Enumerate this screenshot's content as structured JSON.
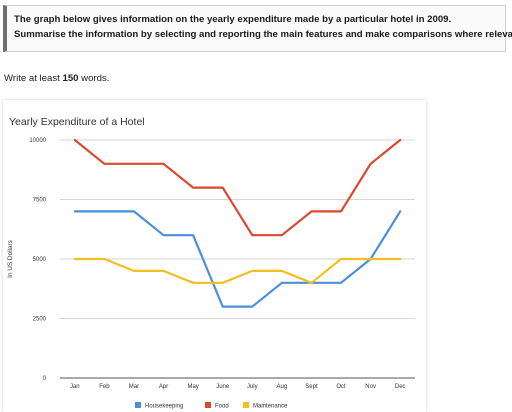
{
  "prompt": {
    "line1": "The graph below gives information on the yearly expenditure made by a particular hotel in 2009.",
    "line2": "Summarise the information by selecting and reporting the main features and make comparisons where relevant."
  },
  "instruction": {
    "prefix": "Write at least ",
    "count": "150",
    "suffix": " words."
  },
  "chart_data": {
    "type": "line",
    "title": "Yearly Expenditure of a Hotel",
    "xlabel": "",
    "ylabel": "In US Dollars",
    "categories": [
      "Jan",
      "Feb",
      "Mar",
      "Apr",
      "May",
      "June",
      "July",
      "Aug",
      "Sept",
      "Oct",
      "Nov",
      "Dec"
    ],
    "ylim": [
      0,
      10000
    ],
    "yticks": [
      "0",
      "2500",
      "5000",
      "7500",
      "10000"
    ],
    "grid": true,
    "legend_position": "bottom",
    "series": [
      {
        "name": "Housekeeping",
        "color": "#4a90d9",
        "values": [
          7000,
          7000,
          7000,
          6000,
          6000,
          3000,
          3000,
          4000,
          4000,
          4000,
          5000,
          7000
        ]
      },
      {
        "name": "Food",
        "color": "#d9492e",
        "values": [
          10000,
          9000,
          9000,
          9000,
          8000,
          8000,
          6000,
          6000,
          7000,
          7000,
          9000,
          10000
        ]
      },
      {
        "name": "Maintenance",
        "color": "#f2bf22",
        "values": [
          5000,
          5000,
          4500,
          4500,
          4000,
          4000,
          4500,
          4500,
          4000,
          5000,
          5000,
          5000
        ]
      }
    ]
  }
}
